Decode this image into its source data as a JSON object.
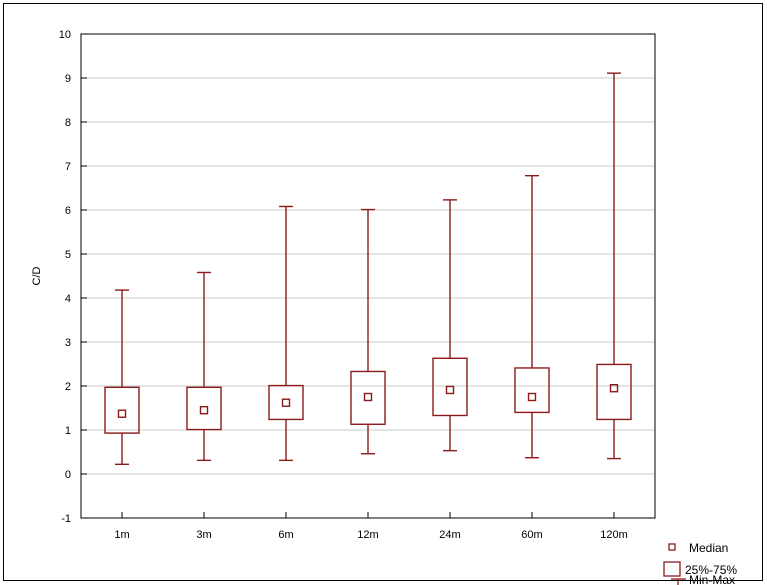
{
  "chart_data": {
    "type": "box",
    "categories": [
      "1m",
      "3m",
      "6m",
      "12m",
      "24m",
      "60m",
      "120m"
    ],
    "series": [
      {
        "boxes": [
          {
            "min": 0.22,
            "q1": 0.93,
            "median": 1.37,
            "q3": 1.97,
            "max": 4.18
          },
          {
            "min": 0.31,
            "q1": 1.01,
            "median": 1.45,
            "q3": 1.97,
            "max": 4.58
          },
          {
            "min": 0.31,
            "q1": 1.24,
            "median": 1.62,
            "q3": 2.01,
            "max": 6.08
          },
          {
            "min": 0.46,
            "q1": 1.13,
            "median": 1.75,
            "q3": 2.33,
            "max": 6.01
          },
          {
            "min": 0.53,
            "q1": 1.33,
            "median": 1.91,
            "q3": 2.63,
            "max": 6.23
          },
          {
            "min": 0.37,
            "q1": 1.4,
            "median": 1.75,
            "q3": 2.41,
            "max": 6.78
          },
          {
            "min": 0.35,
            "q1": 1.24,
            "median": 1.95,
            "q3": 2.49,
            "max": 9.11
          }
        ]
      }
    ],
    "ylabel": "C/D",
    "ylim": [
      -1,
      10
    ],
    "yticks": [
      "-1",
      "0",
      "1",
      "2",
      "3",
      "4",
      "5",
      "6",
      "7",
      "8",
      "9",
      "10"
    ],
    "grid": true,
    "legend": {
      "position": "bottom-right",
      "entries": [
        "Median",
        "25%-75%",
        "Min-Max"
      ]
    },
    "color": "#8b1a1a"
  }
}
